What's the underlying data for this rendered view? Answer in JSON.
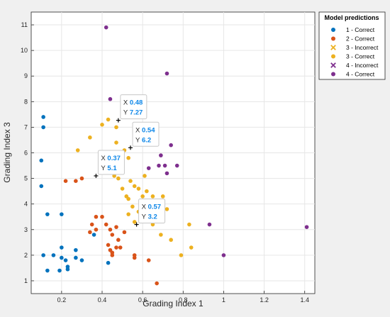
{
  "chart_data": {
    "type": "scatter",
    "title": "",
    "xlabel": "Grading Index 1",
    "ylabel": "Grading Index 3",
    "xlim": [
      0.05,
      1.45
    ],
    "ylim": [
      0.5,
      11.5
    ],
    "xticks": [
      0.2,
      0.4,
      0.6,
      0.8,
      1,
      1.2,
      1.4
    ],
    "yticks": [
      1,
      2,
      3,
      4,
      5,
      6,
      7,
      8,
      9,
      10,
      11
    ],
    "grid": true,
    "legend": {
      "title": "Model predictions",
      "placement": "outside-top-right"
    },
    "series": [
      {
        "name": "1 - Correct",
        "color": "#0072bd",
        "marker": "dot",
        "points": [
          [
            0.11,
            7.4
          ],
          [
            0.11,
            7.0
          ],
          [
            0.1,
            5.7
          ],
          [
            0.1,
            4.7
          ],
          [
            0.13,
            3.6
          ],
          [
            0.2,
            3.6
          ],
          [
            0.11,
            2.0
          ],
          [
            0.16,
            2.0
          ],
          [
            0.2,
            2.3
          ],
          [
            0.2,
            1.9
          ],
          [
            0.22,
            1.8
          ],
          [
            0.23,
            1.55
          ],
          [
            0.23,
            1.45
          ],
          [
            0.13,
            1.4
          ],
          [
            0.19,
            1.4
          ],
          [
            0.27,
            2.2
          ],
          [
            0.27,
            1.9
          ],
          [
            0.3,
            1.8
          ],
          [
            0.36,
            2.8
          ],
          [
            0.43,
            1.7
          ]
        ]
      },
      {
        "name": "2 - Correct",
        "color": "#d95319",
        "marker": "dot",
        "points": [
          [
            0.22,
            4.9
          ],
          [
            0.27,
            4.9
          ],
          [
            0.3,
            5.0
          ],
          [
            0.37,
            3.5
          ],
          [
            0.35,
            3.2
          ],
          [
            0.34,
            2.9
          ],
          [
            0.37,
            3.0
          ],
          [
            0.4,
            3.5
          ],
          [
            0.42,
            3.2
          ],
          [
            0.44,
            3.0
          ],
          [
            0.47,
            3.1
          ],
          [
            0.45,
            2.8
          ],
          [
            0.48,
            2.6
          ],
          [
            0.43,
            2.4
          ],
          [
            0.44,
            2.2
          ],
          [
            0.45,
            2.1
          ],
          [
            0.47,
            2.3
          ],
          [
            0.45,
            2.0
          ],
          [
            0.49,
            2.3
          ],
          [
            0.51,
            2.9
          ],
          [
            0.56,
            2.0
          ],
          [
            0.56,
            1.9
          ],
          [
            0.63,
            1.8
          ],
          [
            0.67,
            0.9
          ]
        ]
      },
      {
        "name": "3 - Incorrect",
        "color": "#edb120",
        "marker": "cross",
        "points": []
      },
      {
        "name": "3 - Correct",
        "color": "#edb120",
        "marker": "dot",
        "points": [
          [
            0.28,
            6.1
          ],
          [
            0.34,
            6.6
          ],
          [
            0.4,
            7.1
          ],
          [
            0.43,
            7.3
          ],
          [
            0.47,
            7.0
          ],
          [
            0.47,
            6.4
          ],
          [
            0.51,
            6.1
          ],
          [
            0.48,
            5.6
          ],
          [
            0.53,
            5.8
          ],
          [
            0.46,
            5.1
          ],
          [
            0.48,
            5.0
          ],
          [
            0.5,
            4.6
          ],
          [
            0.54,
            4.9
          ],
          [
            0.56,
            4.7
          ],
          [
            0.52,
            4.3
          ],
          [
            0.53,
            4.2
          ],
          [
            0.58,
            4.6
          ],
          [
            0.6,
            4.3
          ],
          [
            0.55,
            3.9
          ],
          [
            0.58,
            3.7
          ],
          [
            0.53,
            3.6
          ],
          [
            0.56,
            3.3
          ],
          [
            0.61,
            5.1
          ],
          [
            0.62,
            4.5
          ],
          [
            0.65,
            4.3
          ],
          [
            0.67,
            3.8
          ],
          [
            0.7,
            4.3
          ],
          [
            0.65,
            3.2
          ],
          [
            0.69,
            2.8
          ],
          [
            0.72,
            3.8
          ],
          [
            0.74,
            2.6
          ],
          [
            0.79,
            2.0
          ],
          [
            0.83,
            3.2
          ],
          [
            0.84,
            2.3
          ]
        ]
      },
      {
        "name": "4 - Incorrect",
        "color": "#7e2f8e",
        "marker": "cross",
        "points": []
      },
      {
        "name": "4 - Correct",
        "color": "#7e2f8e",
        "marker": "dot",
        "points": [
          [
            0.42,
            10.9
          ],
          [
            0.72,
            9.1
          ],
          [
            0.44,
            8.1
          ],
          [
            0.69,
            5.9
          ],
          [
            0.68,
            5.5
          ],
          [
            0.71,
            5.5
          ],
          [
            0.74,
            6.3
          ],
          [
            0.77,
            5.5
          ],
          [
            0.72,
            5.2
          ],
          [
            0.63,
            5.4
          ],
          [
            0.93,
            3.2
          ],
          [
            1.0,
            2.0
          ],
          [
            1.41,
            3.1
          ]
        ]
      }
    ],
    "datatips": [
      {
        "x": 0.48,
        "y": 7.27,
        "x_label": "X",
        "x_value": "0.48",
        "y_label": "Y",
        "y_value": "7.27"
      },
      {
        "x": 0.54,
        "y": 6.2,
        "x_label": "X",
        "x_value": "0.54",
        "y_label": "Y",
        "y_value": "6.2"
      },
      {
        "x": 0.37,
        "y": 5.1,
        "x_label": "X",
        "x_value": "0.37",
        "y_label": "Y",
        "y_value": "5.1"
      },
      {
        "x": 0.57,
        "y": 3.2,
        "x_label": "X",
        "x_value": "0.57",
        "y_label": "Y",
        "y_value": "3.2"
      }
    ]
  }
}
